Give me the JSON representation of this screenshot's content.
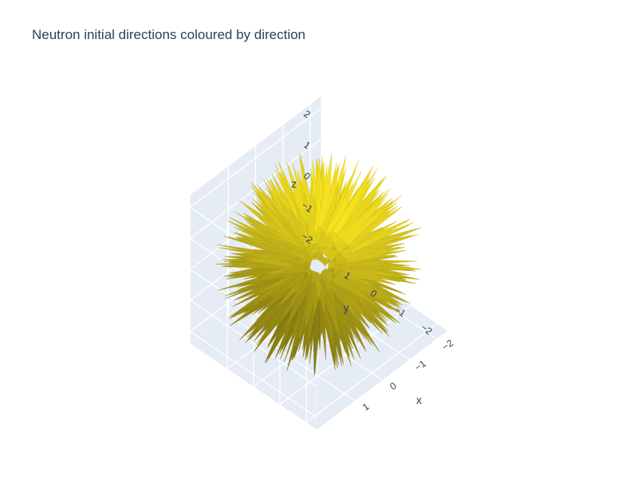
{
  "chart_data": {
    "type": "cone",
    "title": "Neutron initial directions coloured by direction",
    "marker_color": "#f6e21f",
    "pane_color": "#e5ecf6",
    "grid_color": "#ffffff",
    "axes": {
      "x": {
        "title": "x",
        "range": [
          -2.4,
          2.4
        ],
        "ticks": [
          -2,
          -1,
          0,
          1
        ],
        "tick_labels": [
          "−2",
          "−1",
          "0",
          "1"
        ]
      },
      "y": {
        "title": "y",
        "range": [
          -2.4,
          2.4
        ],
        "ticks": [
          -2,
          -1,
          0,
          1
        ],
        "tick_labels": [
          "−2",
          "−1",
          "0",
          "1"
        ]
      },
      "z": {
        "title": "z",
        "range": [
          -2.4,
          2.4
        ],
        "ticks": [
          -2,
          -1,
          0,
          1,
          2
        ],
        "tick_labels": [
          "−2",
          "−1",
          "0",
          "1",
          "2"
        ]
      }
    },
    "grid": true,
    "legend": "none"
  }
}
